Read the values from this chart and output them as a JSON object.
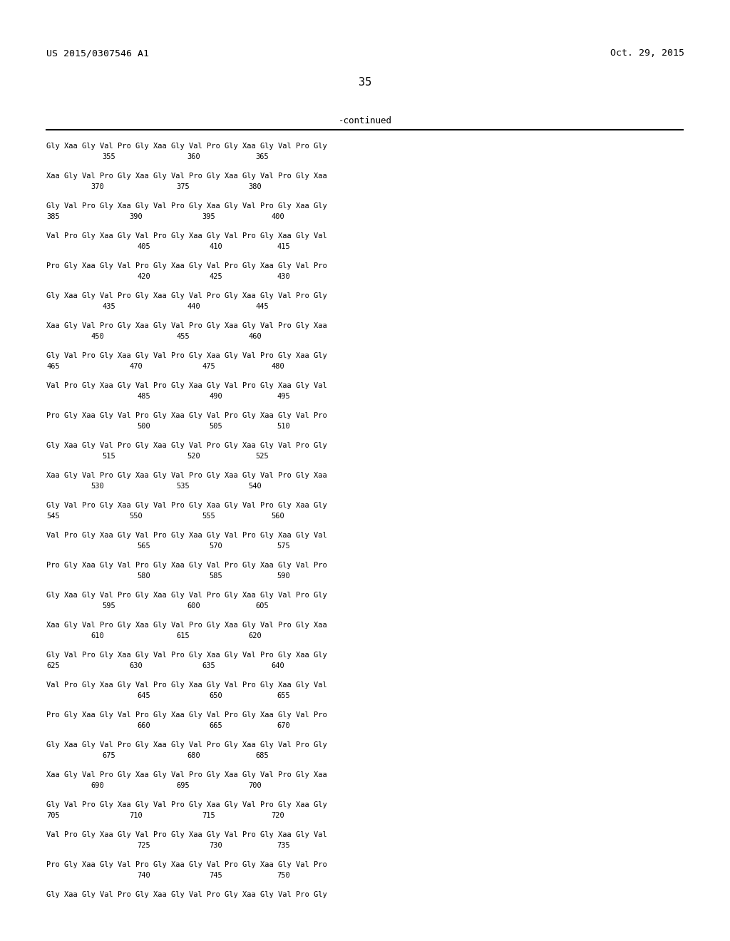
{
  "header_left": "US 2015/0307546 A1",
  "header_right": "Oct. 29, 2015",
  "page_number": "35",
  "continued_label": "-continued",
  "background_color": "#ffffff",
  "text_color": "#000000",
  "sequence_blocks": [
    {
      "seq": "Gly Xaa Gly Val Pro Gly Xaa Gly Val Pro Gly Xaa Gly Val Pro Gly",
      "nums": [
        "355",
        "360",
        "365"
      ],
      "num_indent": "indented3"
    },
    {
      "seq": "Xaa Gly Val Pro Gly Xaa Gly Val Pro Gly Xaa Gly Val Pro Gly Xaa",
      "nums": [
        "370",
        "375",
        "380"
      ],
      "num_indent": "indented3"
    },
    {
      "seq": "Gly Val Pro Gly Xaa Gly Val Pro Gly Xaa Gly Val Pro Gly Xaa Gly",
      "nums": [
        "385",
        "390",
        "395",
        "400"
      ],
      "num_indent": "flush4"
    },
    {
      "seq": "Val Pro Gly Xaa Gly Val Pro Gly Xaa Gly Val Pro Gly Xaa Gly Val",
      "nums": [
        "405",
        "410",
        "415"
      ],
      "num_indent": "indented3b"
    },
    {
      "seq": "Pro Gly Xaa Gly Val Pro Gly Xaa Gly Val Pro Gly Xaa Gly Val Pro",
      "nums": [
        "420",
        "425",
        "430"
      ],
      "num_indent": "indented3b"
    },
    {
      "seq": "Gly Xaa Gly Val Pro Gly Xaa Gly Val Pro Gly Xaa Gly Val Pro Gly",
      "nums": [
        "435",
        "440",
        "445"
      ],
      "num_indent": "indented3"
    },
    {
      "seq": "Xaa Gly Val Pro Gly Xaa Gly Val Pro Gly Xaa Gly Val Pro Gly Xaa",
      "nums": [
        "450",
        "455",
        "460"
      ],
      "num_indent": "indented3"
    },
    {
      "seq": "Gly Val Pro Gly Xaa Gly Val Pro Gly Xaa Gly Val Pro Gly Xaa Gly",
      "nums": [
        "465",
        "470",
        "475",
        "480"
      ],
      "num_indent": "flush4"
    },
    {
      "seq": "Val Pro Gly Xaa Gly Val Pro Gly Xaa Gly Val Pro Gly Xaa Gly Val",
      "nums": [
        "485",
        "490",
        "495"
      ],
      "num_indent": "indented3b"
    },
    {
      "seq": "Pro Gly Xaa Gly Val Pro Gly Xaa Gly Val Pro Gly Xaa Gly Val Pro",
      "nums": [
        "500",
        "505",
        "510"
      ],
      "num_indent": "indented3b"
    },
    {
      "seq": "Gly Xaa Gly Val Pro Gly Xaa Gly Val Pro Gly Xaa Gly Val Pro Gly",
      "nums": [
        "515",
        "520",
        "525"
      ],
      "num_indent": "indented3"
    },
    {
      "seq": "Xaa Gly Val Pro Gly Xaa Gly Val Pro Gly Xaa Gly Val Pro Gly Xaa",
      "nums": [
        "530",
        "535",
        "540"
      ],
      "num_indent": "indented3"
    },
    {
      "seq": "Gly Val Pro Gly Xaa Gly Val Pro Gly Xaa Gly Val Pro Gly Xaa Gly",
      "nums": [
        "545",
        "550",
        "555",
        "560"
      ],
      "num_indent": "flush4"
    },
    {
      "seq": "Val Pro Gly Xaa Gly Val Pro Gly Xaa Gly Val Pro Gly Xaa Gly Val",
      "nums": [
        "565",
        "570",
        "575"
      ],
      "num_indent": "indented3b"
    },
    {
      "seq": "Pro Gly Xaa Gly Val Pro Gly Xaa Gly Val Pro Gly Xaa Gly Val Pro",
      "nums": [
        "580",
        "585",
        "590"
      ],
      "num_indent": "indented3b"
    },
    {
      "seq": "Gly Xaa Gly Val Pro Gly Xaa Gly Val Pro Gly Xaa Gly Val Pro Gly",
      "nums": [
        "595",
        "600",
        "605"
      ],
      "num_indent": "indented3"
    },
    {
      "seq": "Xaa Gly Val Pro Gly Xaa Gly Val Pro Gly Xaa Gly Val Pro Gly Xaa",
      "nums": [
        "610",
        "615",
        "620"
      ],
      "num_indent": "indented3"
    },
    {
      "seq": "Gly Val Pro Gly Xaa Gly Val Pro Gly Xaa Gly Val Pro Gly Xaa Gly",
      "nums": [
        "625",
        "630",
        "635",
        "640"
      ],
      "num_indent": "flush4"
    },
    {
      "seq": "Val Pro Gly Xaa Gly Val Pro Gly Xaa Gly Val Pro Gly Xaa Gly Val",
      "nums": [
        "645",
        "650",
        "655"
      ],
      "num_indent": "indented3b"
    },
    {
      "seq": "Pro Gly Xaa Gly Val Pro Gly Xaa Gly Val Pro Gly Xaa Gly Val Pro",
      "nums": [
        "660",
        "665",
        "670"
      ],
      "num_indent": "indented3b"
    },
    {
      "seq": "Gly Xaa Gly Val Pro Gly Xaa Gly Val Pro Gly Xaa Gly Val Pro Gly",
      "nums": [
        "675",
        "680",
        "685"
      ],
      "num_indent": "indented3"
    },
    {
      "seq": "Xaa Gly Val Pro Gly Xaa Gly Val Pro Gly Xaa Gly Val Pro Gly Xaa",
      "nums": [
        "690",
        "695",
        "700"
      ],
      "num_indent": "indented3"
    },
    {
      "seq": "Gly Val Pro Gly Xaa Gly Val Pro Gly Xaa Gly Val Pro Gly Xaa Gly",
      "nums": [
        "705",
        "710",
        "715",
        "720"
      ],
      "num_indent": "flush4"
    },
    {
      "seq": "Val Pro Gly Xaa Gly Val Pro Gly Xaa Gly Val Pro Gly Xaa Gly Val",
      "nums": [
        "725",
        "730",
        "735"
      ],
      "num_indent": "indented3b"
    },
    {
      "seq": "Pro Gly Xaa Gly Val Pro Gly Xaa Gly Val Pro Gly Xaa Gly Val Pro",
      "nums": [
        "740",
        "745",
        "750"
      ],
      "num_indent": "indented3b"
    },
    {
      "seq": "Gly Xaa Gly Val Pro Gly Xaa Gly Val Pro Gly Xaa Gly Val Pro Gly",
      "nums": [],
      "num_indent": "none"
    }
  ]
}
